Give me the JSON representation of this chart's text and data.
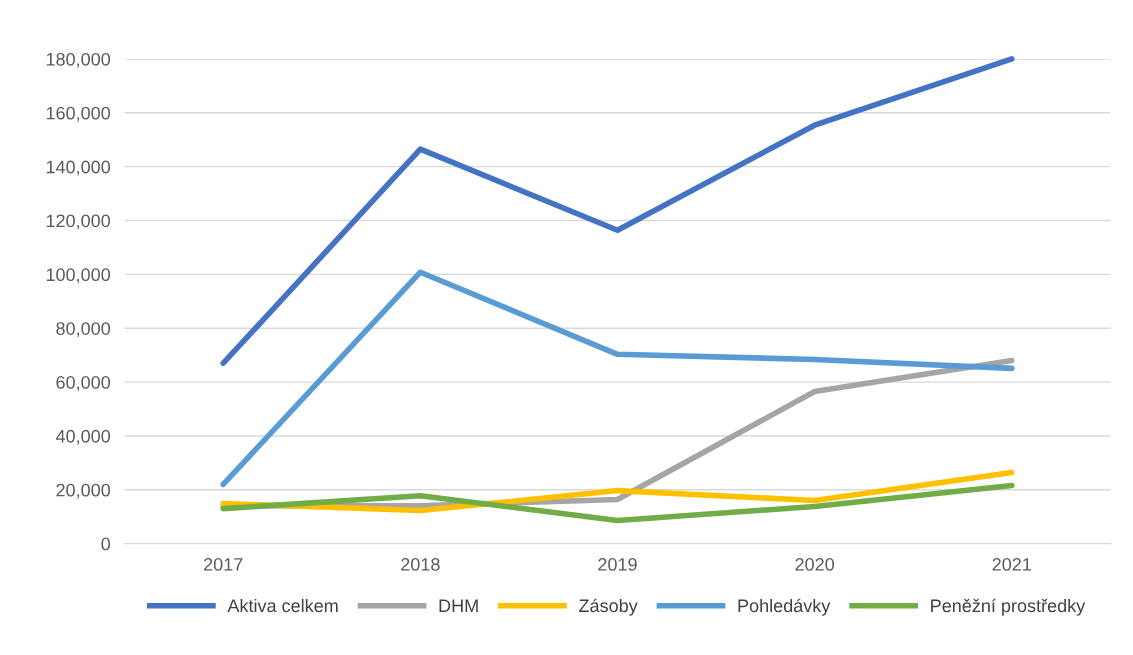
{
  "chart_data": {
    "type": "line",
    "categories": [
      "2017",
      "2018",
      "2019",
      "2020",
      "2021"
    ],
    "series": [
      {
        "name": "Aktiva celkem",
        "color": "#4472c4",
        "values": [
          67000,
          146500,
          116400,
          155400,
          180000
        ]
      },
      {
        "name": "DHM",
        "color": "#a5a5a5",
        "values": [
          14100,
          14100,
          16400,
          56500,
          68000
        ]
      },
      {
        "name": "Zásoby",
        "color": "#ffc000",
        "values": [
          14900,
          12300,
          19700,
          16000,
          26400
        ]
      },
      {
        "name": "Pohledávky",
        "color": "#5b9bd5",
        "values": [
          22000,
          100800,
          70300,
          68400,
          65100
        ]
      },
      {
        "name": "Peněžní prostředky",
        "color": "#70ad47",
        "values": [
          13000,
          17800,
          8600,
          13800,
          21600
        ]
      }
    ],
    "ylim": [
      0,
      180000
    ],
    "yticks": [
      {
        "value": 0,
        "label": "0"
      },
      {
        "value": 20000,
        "label": "20,000"
      },
      {
        "value": 40000,
        "label": "40,000"
      },
      {
        "value": 60000,
        "label": "60,000"
      },
      {
        "value": 80000,
        "label": "80,000"
      },
      {
        "value": 100000,
        "label": "100,000"
      },
      {
        "value": 120000,
        "label": "120,000"
      },
      {
        "value": 140000,
        "label": "140,000"
      },
      {
        "value": 160000,
        "label": "160,000"
      },
      {
        "value": 180000,
        "label": "180,000"
      }
    ],
    "grid": "y",
    "legend": "bottom",
    "marker": "none",
    "line_style": "solid"
  }
}
